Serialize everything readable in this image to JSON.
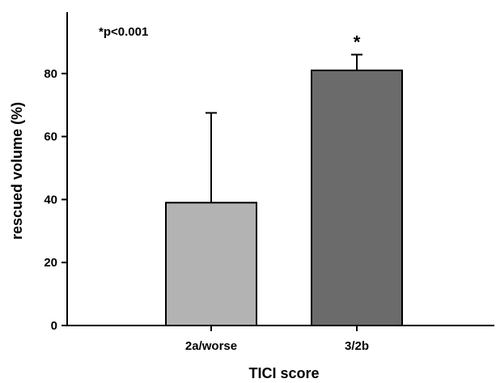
{
  "chart_data": {
    "type": "bar",
    "categories": [
      "2a/worse",
      "3/2b"
    ],
    "values": [
      39,
      81
    ],
    "error_upper": [
      67.5,
      86
    ],
    "bar_colors": [
      "#b3b3b3",
      "#6b6b6b"
    ],
    "xlabel": "TICI score",
    "ylabel": "rescued volume (%)",
    "ylim": [
      0,
      100
    ],
    "yticks": [
      0,
      20,
      40,
      60,
      80
    ],
    "grid": false,
    "annotations": {
      "significance_note": "*p<0.001",
      "significance_marker": "*"
    }
  }
}
